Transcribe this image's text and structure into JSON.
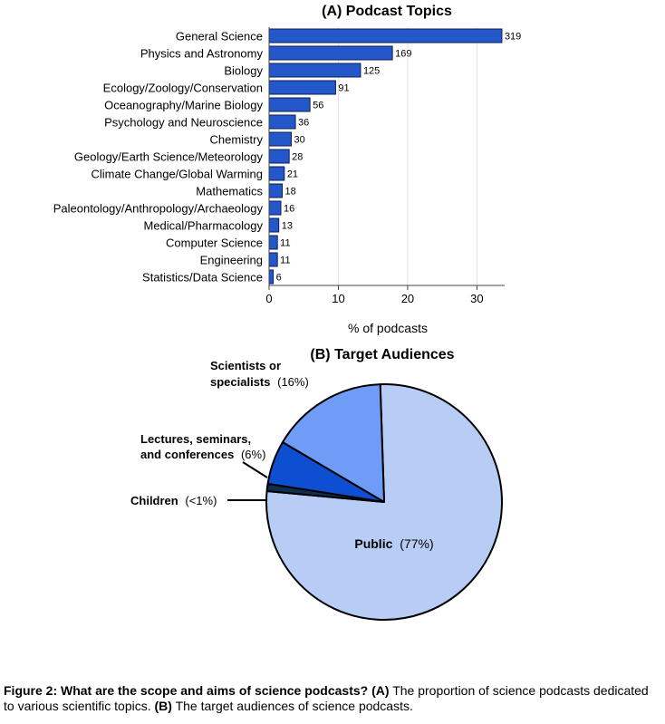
{
  "chart_data": [
    {
      "type": "bar",
      "orientation": "horizontal",
      "title": "(A) Podcast Topics",
      "xlabel": "% of podcasts",
      "xlim": [
        0,
        34
      ],
      "xticks": [
        0,
        10,
        20,
        30
      ],
      "grid": true,
      "bar_color": "#2457c9",
      "categories": [
        "General Science",
        "Physics and Astronomy",
        "Biology",
        "Ecology/Zoology/Conservation",
        "Oceanography/Marine Biology",
        "Psychology and Neuroscience",
        "Chemistry",
        "Geology/Earth Science/Meteorology",
        "Climate Change/Global Warming",
        "Mathematics",
        "Paleontology/Anthropology/Archaeology",
        "Medical/Pharmacology",
        "Computer Science",
        "Engineering",
        "Statistics/Data Science"
      ],
      "values": [
        33.6,
        17.8,
        13.2,
        9.6,
        5.9,
        3.8,
        3.2,
        2.9,
        2.2,
        1.9,
        1.7,
        1.4,
        1.2,
        1.2,
        0.6
      ],
      "data_labels": [
        "319",
        "169",
        "125",
        "91",
        "56",
        "36",
        "30",
        "28",
        "21",
        "18",
        "16",
        "13",
        "11",
        "11",
        "6"
      ]
    },
    {
      "type": "pie",
      "title": "(B) Target Audiences",
      "slices": [
        {
          "name": "Public",
          "pct_label": "(77%)",
          "value": 77,
          "color": "#b8cdf5"
        },
        {
          "name": "Children",
          "pct_label": "(<1%)",
          "value": 1,
          "color": "#0f2f4f"
        },
        {
          "name": "Lectures, seminars, and conferences",
          "line1": "Lectures, seminars,",
          "line2": "and conferences",
          "pct_label": "(6%)",
          "value": 6,
          "color": "#0d4fd0"
        },
        {
          "name": "Scientists or specialists",
          "line1": "Scientists or",
          "line2": "specialists",
          "pct_label": "(16%)",
          "value": 16,
          "color": "#6e9cf7"
        }
      ]
    }
  ],
  "caption": {
    "bold_intro": "Figure 2: What are the scope and aims of science podcasts?",
    "part_a_marker": "(A)",
    "part_a_text": "The proportion of science podcasts dedicated to various scientific topics.",
    "part_b_marker": "(B)",
    "part_b_text": "The target audiences of science podcasts."
  }
}
